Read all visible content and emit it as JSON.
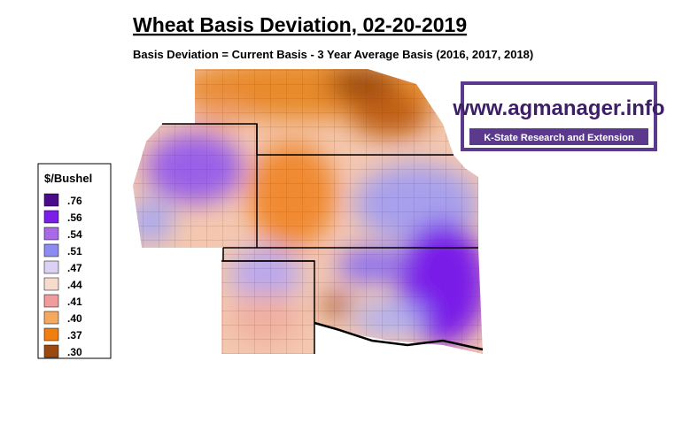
{
  "header": {
    "title": "Wheat Basis Deviation, 02-20-2019",
    "subtitle": "Basis Deviation = Current Basis - 3 Year Average Basis (2016, 2017, 2018)"
  },
  "legend": {
    "title": "$/Bushel",
    "items": [
      {
        "label": ".76",
        "color": "#4a0c8a"
      },
      {
        "label": ".56",
        "color": "#7a1ee8"
      },
      {
        "label": ".54",
        "color": "#a86ae6"
      },
      {
        "label": ".51",
        "color": "#8c8cf0"
      },
      {
        "label": ".47",
        "color": "#dcd0f4"
      },
      {
        "label": ".44",
        "color": "#f6dccc"
      },
      {
        "label": ".41",
        "color": "#f09c9c"
      },
      {
        "label": ".40",
        "color": "#f4a860"
      },
      {
        "label": ".37",
        "color": "#f07f10"
      },
      {
        "label": ".30",
        "color": "#9a4a10"
      }
    ]
  },
  "logo": {
    "url": "www.agmanager.info",
    "tagline": "K-State Research and Extension"
  }
}
